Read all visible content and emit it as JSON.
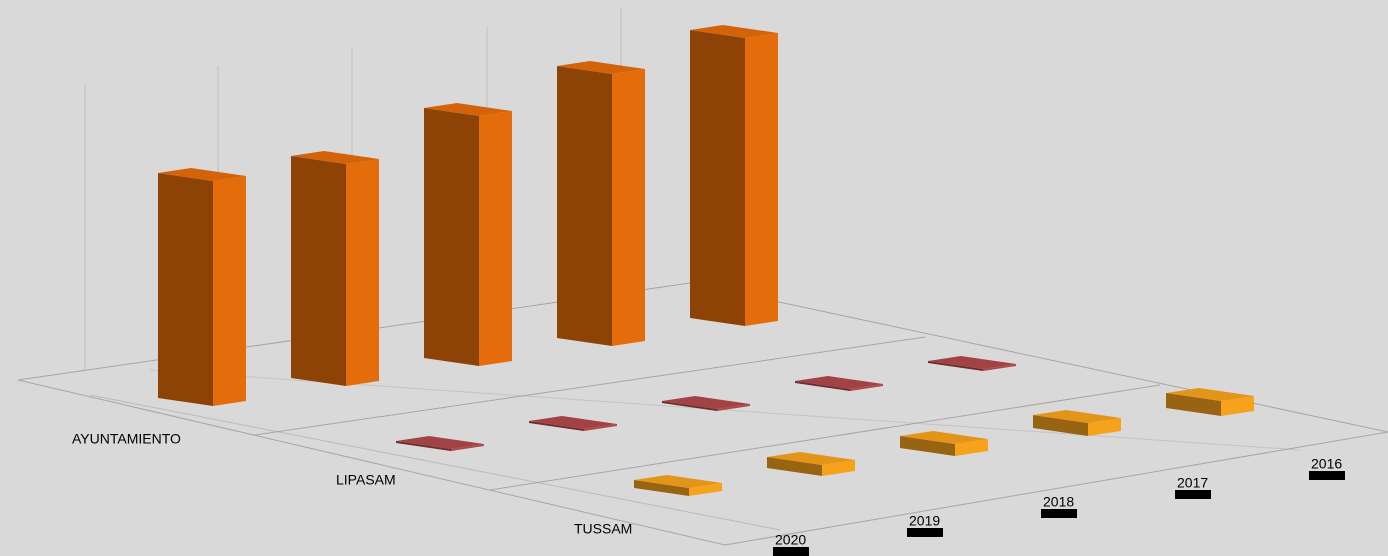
{
  "chart_data": {
    "type": "bar3d",
    "categories": [
      "AYUNTAMIENTO",
      "LIPASAM",
      "TUSSAM"
    ],
    "colors": [
      "#e46c0a",
      "#b0484a",
      "#f7a21b"
    ],
    "series": [
      {
        "name": "2020",
        "values": [
          225,
          2,
          8
        ]
      },
      {
        "name": "2019",
        "values": [
          222,
          2,
          11
        ]
      },
      {
        "name": "2018",
        "values": [
          250,
          2,
          12
        ]
      },
      {
        "name": "2017",
        "values": [
          272,
          2,
          13
        ]
      },
      {
        "name": "2016",
        "values": [
          288,
          2,
          15
        ]
      }
    ]
  }
}
